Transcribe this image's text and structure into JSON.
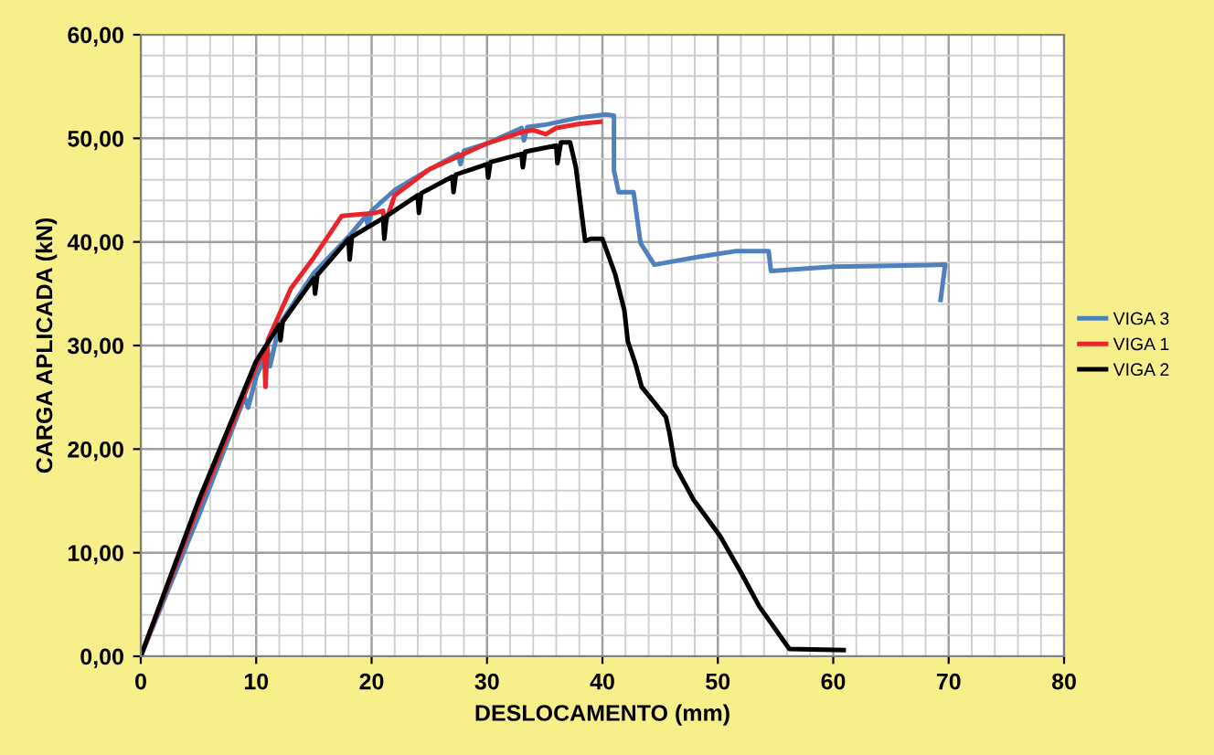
{
  "chart_data": {
    "type": "line",
    "xlabel": "DESLOCAMENTO (mm)",
    "ylabel": "CARGA APLICADA (kN)",
    "xlim": [
      0,
      80
    ],
    "xticks": [
      0,
      10,
      20,
      30,
      40,
      50,
      60,
      70,
      80
    ],
    "ylim": [
      0,
      60
    ],
    "yticks": [
      {
        "value": 0,
        "label": "0,00"
      },
      {
        "value": 10,
        "label": "10,00"
      },
      {
        "value": 20,
        "label": "20,00"
      },
      {
        "value": 30,
        "label": "30,00"
      },
      {
        "value": 40,
        "label": "40,00"
      },
      {
        "value": 50,
        "label": "50,00"
      },
      {
        "value": 60,
        "label": "60,00"
      }
    ],
    "grid": true,
    "legend": "right",
    "marker": "none",
    "line_style": "solid",
    "series": [
      {
        "name": "VIGA 3",
        "color": "#4f81bd",
        "x": [
          0,
          5,
          9,
          9.3,
          10,
          11,
          11.2,
          12,
          15,
          18,
          19.5,
          19.7,
          20,
          22,
          25,
          27.5,
          27.7,
          28,
          30,
          33,
          33.2,
          33.5,
          35,
          38,
          40.3,
          41.0,
          41.0,
          41.4,
          42.7,
          43.3,
          44.5,
          48,
          51.5,
          54.4,
          54.6,
          60,
          65,
          69.7,
          69.3
        ],
        "values": [
          0,
          13.5,
          25,
          24,
          27,
          29.5,
          28,
          32,
          37,
          40.5,
          42.5,
          41.5,
          43,
          45,
          47,
          48.5,
          47.5,
          48.8,
          49.5,
          51,
          49.8,
          51.1,
          51.3,
          52,
          52.3,
          52.2,
          46.9,
          44.8,
          44.8,
          39.9,
          37.8,
          38.5,
          39.1,
          39.1,
          37.2,
          37.6,
          37.7,
          37.8,
          34.4
        ]
      },
      {
        "name": "VIGA 1",
        "color": "#e8262a",
        "x": [
          0,
          5,
          10,
          10.7,
          10.8,
          11,
          13,
          15,
          16.5,
          17.4,
          20.3,
          21,
          21.1,
          22,
          25,
          30,
          33,
          34,
          35.1,
          36,
          38,
          39.8
        ],
        "values": [
          0,
          14.5,
          28,
          29.5,
          26,
          30.5,
          35.5,
          38.5,
          41,
          42.5,
          42.8,
          43,
          41.5,
          44.5,
          47,
          49.5,
          50.6,
          50.8,
          50.4,
          51,
          51.4,
          51.6
        ]
      },
      {
        "name": "VIGA 2",
        "color": "#000000",
        "x": [
          0,
          5,
          10,
          12,
          12.1,
          12.3,
          15,
          15.1,
          15.3,
          18,
          18.1,
          18.3,
          21,
          21.1,
          21.3,
          24,
          24.1,
          24.3,
          27,
          27.1,
          27.3,
          30,
          30.1,
          30.3,
          33,
          33.1,
          33.3,
          36,
          36.1,
          36.4,
          37.2,
          37.7,
          38.5,
          39.0,
          40.0,
          41.1,
          41.9,
          42.2,
          42.9,
          43.4,
          44.5,
          45.5,
          45.8,
          46.3,
          47.9,
          50.2,
          52.0,
          53.6,
          56.2,
          60.9
        ],
        "values": [
          0,
          15,
          28.5,
          32,
          30.5,
          32.3,
          36.5,
          35,
          36.8,
          40.3,
          38.3,
          40.5,
          42.3,
          40.3,
          42.5,
          44.5,
          42.8,
          44.7,
          46.3,
          44.8,
          46.5,
          47.5,
          46.2,
          47.7,
          48.5,
          47.2,
          48.7,
          49.3,
          47.6,
          49.6,
          49.6,
          47.2,
          40.1,
          40.3,
          40.3,
          36.9,
          33.4,
          30.4,
          28.1,
          26.0,
          24.5,
          23.1,
          21.6,
          18.4,
          15.1,
          11.6,
          8.1,
          4.8,
          0.7,
          0.6
        ]
      }
    ]
  }
}
